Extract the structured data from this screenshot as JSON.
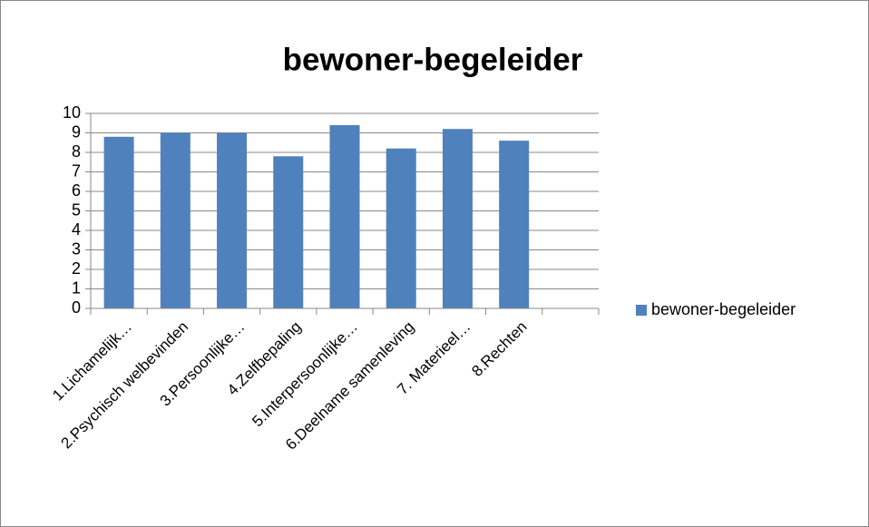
{
  "chart_data": {
    "type": "bar",
    "title": "bewoner-begeleider",
    "categories": [
      "1.Lichamelijk…",
      "2.Psychisch welbevinden",
      "3.Persoonlijke…",
      "4.Zelfbepaling",
      "5.Interpersoonlijke…",
      "6.Deelname samenleving",
      "7. Materieel…",
      "8.Rechten",
      null
    ],
    "series": [
      {
        "name": "bewoner-begeleider",
        "color": "#4f81bd",
        "values": [
          8.8,
          9.0,
          9.0,
          7.8,
          9.4,
          8.2,
          9.2,
          8.6,
          null
        ]
      }
    ],
    "ylim": [
      0,
      10
    ],
    "yticks": [
      0,
      1,
      2,
      3,
      4,
      5,
      6,
      7,
      8,
      9,
      10
    ],
    "grid": true,
    "legend": "right"
  }
}
